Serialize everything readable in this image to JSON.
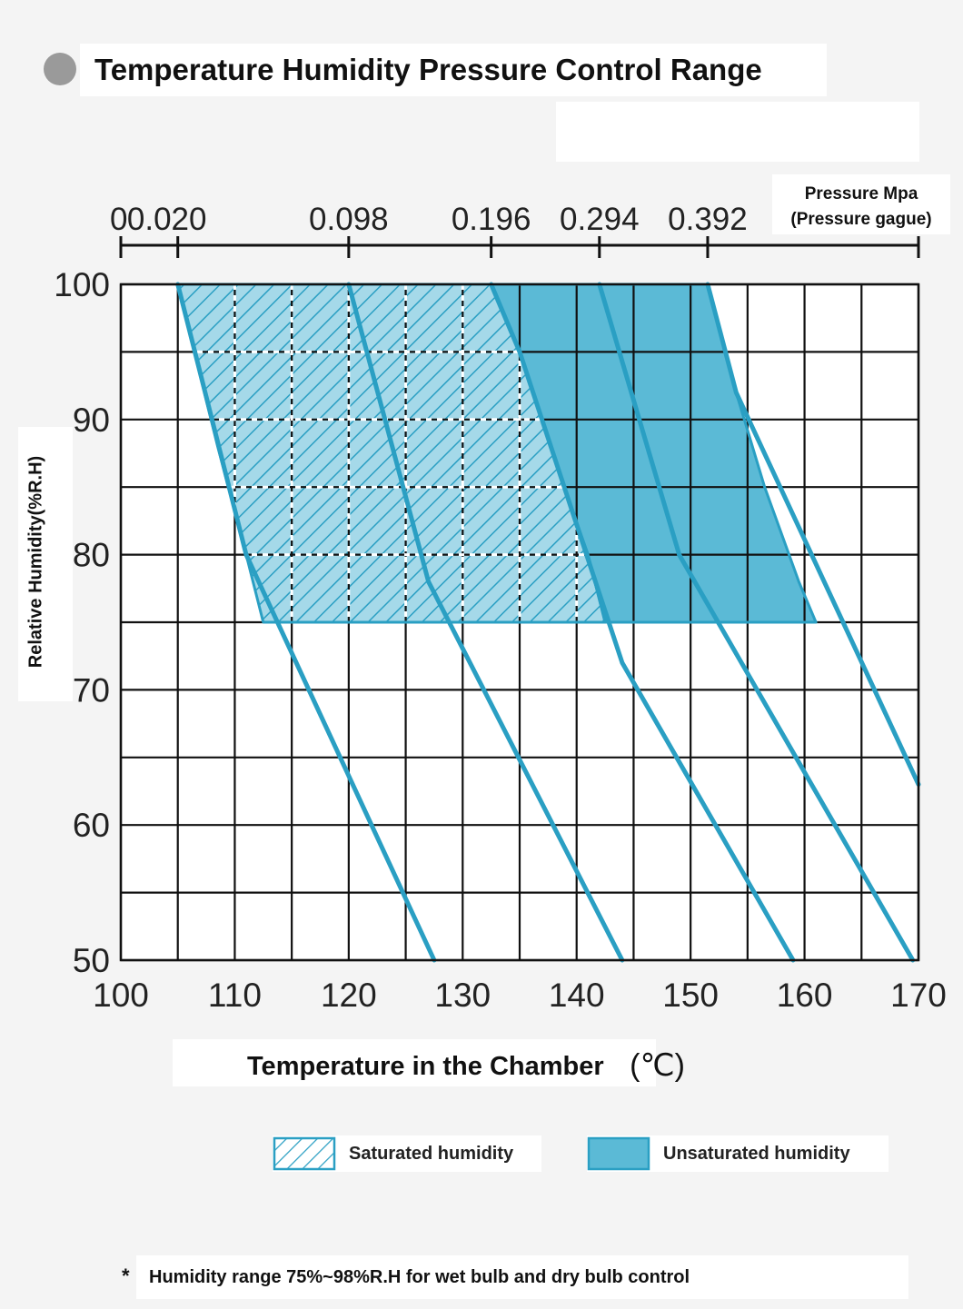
{
  "header": {
    "title": "Temperature Humidity Pressure Control Range"
  },
  "colors": {
    "accent": "#2a9fc3",
    "fill": "#5bbad6",
    "grid": "#111111",
    "background": "#f4f4f4"
  },
  "chart_data": {
    "type": "line",
    "x_axis": {
      "label": "Temperature in the Chamber",
      "unit": "(℃)",
      "range": [
        100,
        170
      ],
      "ticks": [
        100,
        110,
        120,
        130,
        140,
        150,
        160,
        170
      ],
      "grid_step": 5
    },
    "y_axis": {
      "label": "Relative Humidity(%R.H)",
      "range": [
        50,
        100
      ],
      "ticks": [
        50,
        60,
        70,
        80,
        90,
        100
      ],
      "grid_step": 5
    },
    "top_axis": {
      "label_line1": "Pressure Mpa",
      "label_line2": "(Pressure gague)",
      "ticks": [
        {
          "label": "0",
          "temp": 100
        },
        {
          "label": "0.020",
          "temp": 105
        },
        {
          "label": "0.098",
          "temp": 120
        },
        {
          "label": "0.196",
          "temp": 132.5
        },
        {
          "label": "0.294",
          "temp": 142
        },
        {
          "label": "0.392",
          "temp": 151.5
        }
      ],
      "end_temp": 170
    },
    "series": [
      {
        "name": "0.020 MPa",
        "points": [
          [
            105,
            100
          ],
          [
            111,
            80
          ],
          [
            127.5,
            50
          ]
        ]
      },
      {
        "name": "0.098 MPa",
        "points": [
          [
            120,
            100
          ],
          [
            127,
            78
          ],
          [
            144,
            50
          ]
        ]
      },
      {
        "name": "0.196 MPa",
        "points": [
          [
            132.5,
            100
          ],
          [
            135,
            95
          ],
          [
            144,
            72
          ],
          [
            159,
            50
          ]
        ]
      },
      {
        "name": "0.294 MPa",
        "points": [
          [
            142,
            100
          ],
          [
            149,
            80
          ],
          [
            169.5,
            50
          ]
        ]
      },
      {
        "name": "0.392 MPa",
        "points": [
          [
            151.5,
            100
          ],
          [
            154,
            92
          ],
          [
            170,
            63
          ]
        ]
      }
    ],
    "regions": [
      {
        "name": "Saturated humidity",
        "style": "hatched",
        "points": [
          [
            105,
            100
          ],
          [
            132.5,
            100
          ],
          [
            135,
            95
          ],
          [
            138.5,
            86
          ],
          [
            141,
            80
          ],
          [
            142.5,
            75
          ],
          [
            112.5,
            75
          ],
          [
            111,
            80
          ],
          [
            108.5,
            88
          ],
          [
            105,
            100
          ]
        ]
      },
      {
        "name": "Unsaturated humidity",
        "style": "solid",
        "points": [
          [
            132.5,
            100
          ],
          [
            151.5,
            100
          ],
          [
            154,
            92
          ],
          [
            156.5,
            85
          ],
          [
            159.5,
            78
          ],
          [
            161,
            75
          ],
          [
            142.5,
            75
          ],
          [
            141,
            80
          ],
          [
            138.5,
            86
          ],
          [
            135,
            95
          ],
          [
            132.5,
            100
          ]
        ]
      }
    ],
    "humidity_range": [
      75,
      98
    ],
    "legend": [
      {
        "label": "Saturated humidity",
        "style": "hatched"
      },
      {
        "label": "Unsaturated humidity",
        "style": "solid"
      }
    ]
  },
  "footnote": {
    "star": "*",
    "text": "Humidity range 75%~98%R.H for wet bulb and dry bulb control"
  }
}
